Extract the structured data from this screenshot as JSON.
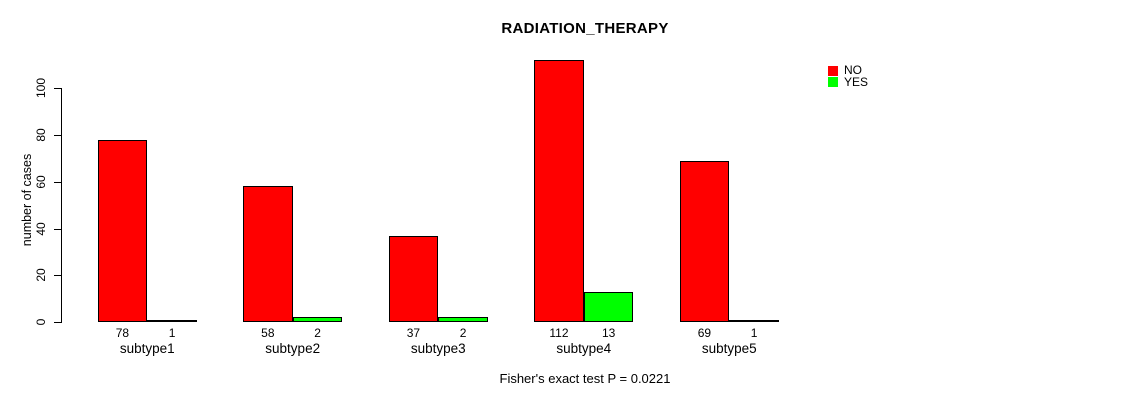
{
  "chart_data": {
    "type": "bar",
    "title": "RADIATION_THERAPY",
    "xlabel": "",
    "ylabel": "number of cases",
    "caption": "Fisher's exact test P = 0.0221",
    "categories": [
      "subtype1",
      "subtype2",
      "subtype3",
      "subtype4",
      "subtype5"
    ],
    "series": [
      {
        "name": "NO",
        "color": "#ff0000",
        "values": [
          78,
          58,
          37,
          112,
          69
        ]
      },
      {
        "name": "YES",
        "color": "#00ff00",
        "values": [
          1,
          2,
          2,
          13,
          1
        ]
      }
    ],
    "bar_value_labels": {
      "NO": [
        "78",
        "58",
        "37",
        "112",
        "69"
      ],
      "YES": [
        "1",
        "2",
        "2",
        "13",
        "1"
      ]
    },
    "yticks": [
      0,
      20,
      40,
      60,
      80,
      100
    ],
    "ylim": [
      0,
      115
    ],
    "grid": false,
    "legend_position": "top-right",
    "colors": {
      "background": "#ffffff",
      "axis": "#000000",
      "text": "#000000"
    }
  }
}
